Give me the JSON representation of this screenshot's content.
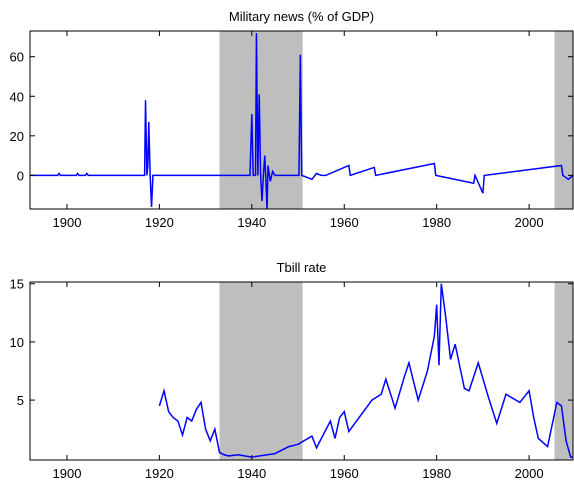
{
  "chart_data": [
    {
      "type": "line",
      "title": "Military news (% of GDP)",
      "color": "#0000ff",
      "shade_color": "#bebebe",
      "shaded_regions": [
        [
          1933,
          1951
        ],
        [
          2005.5,
          2009.5
        ]
      ],
      "x": [
        1892,
        1898,
        1898.3,
        1898.6,
        1902,
        1902.3,
        1902.6,
        1904,
        1904.3,
        1904.6,
        1916.8,
        1917,
        1917.3,
        1917.5,
        1917.7,
        1918,
        1918.3,
        1918.6,
        1939.6,
        1940,
        1940.3,
        1940.8,
        1941,
        1941.3,
        1941.6,
        1941.9,
        1942.2,
        1942.5,
        1942.8,
        1943,
        1943.3,
        1943.5,
        1943.8,
        1944,
        1944.5,
        1945,
        1946,
        1950.2,
        1950.5,
        1950.8,
        1953,
        1954,
        1955,
        1956,
        1961,
        1961.3,
        1966.5,
        1966.8,
        1979.5,
        1979.8,
        1988,
        1988.3,
        1990,
        1990.3,
        2007,
        2007.3,
        2008.5,
        2009.5
      ],
      "values": [
        0,
        0,
        1,
        0,
        0,
        1,
        0,
        0,
        1,
        0,
        0,
        38,
        0,
        5,
        27,
        0,
        -16,
        0,
        0,
        31,
        0,
        0,
        72,
        0,
        41,
        0,
        -13,
        0,
        10,
        0,
        -17,
        5,
        0,
        -3,
        2,
        0,
        0,
        0,
        61,
        0,
        -2,
        1,
        0,
        0,
        5,
        0,
        4,
        0,
        6,
        0,
        -4,
        0,
        -9,
        0,
        5,
        0,
        -2,
        0
      ],
      "xlim": [
        1892,
        2009.5
      ],
      "xticks": [
        1900,
        1920,
        1940,
        1960,
        1980,
        2000
      ],
      "ylim": [
        -17,
        73
      ],
      "yticks": [
        0,
        20,
        40,
        60
      ]
    },
    {
      "type": "line",
      "title": "Tbill rate",
      "color": "#0000ff",
      "shade_color": "#bebebe",
      "shaded_regions": [
        [
          1933,
          1951
        ],
        [
          2005.5,
          2009.5
        ]
      ],
      "x": [
        1920,
        1921,
        1922,
        1923,
        1924,
        1925,
        1926,
        1927,
        1928,
        1929,
        1930,
        1931,
        1932,
        1933,
        1934,
        1935,
        1937,
        1940,
        1945,
        1948,
        1950,
        1953,
        1954,
        1957,
        1958,
        1959,
        1960,
        1961,
        1966,
        1968,
        1969,
        1971,
        1973,
        1974,
        1976,
        1978,
        1979.5,
        1980,
        1980.5,
        1981,
        1982,
        1983,
        1984,
        1986,
        1987,
        1989,
        1991,
        1993,
        1995,
        1998,
        2000,
        2001,
        2002,
        2004,
        2006,
        2007,
        2008,
        2009,
        2014
      ],
      "values": [
        4.5,
        5.8,
        4,
        3.5,
        3.2,
        2,
        3.5,
        3.2,
        4.2,
        4.8,
        2.5,
        1.5,
        2.5,
        0.5,
        0.3,
        0.2,
        0.3,
        0.1,
        0.4,
        1,
        1.2,
        1.9,
        0.9,
        3.2,
        1.7,
        3.5,
        4,
        2.3,
        5,
        5.5,
        6.8,
        4.3,
        7,
        8.2,
        5,
        7.5,
        10.5,
        13.2,
        8,
        15,
        12,
        8.5,
        9.8,
        6,
        5.8,
        8.2,
        5.5,
        3,
        5.5,
        4.8,
        5.8,
        3.5,
        1.7,
        1,
        4.8,
        4.5,
        1.5,
        0.1,
        0.1
      ],
      "xlim": [
        1892,
        2009.5
      ],
      "xticks": [
        1900,
        1920,
        1940,
        1960,
        1980,
        2000
      ],
      "ylim": [
        -0.15,
        15.15
      ],
      "yticks": [
        5,
        10,
        15
      ]
    }
  ]
}
